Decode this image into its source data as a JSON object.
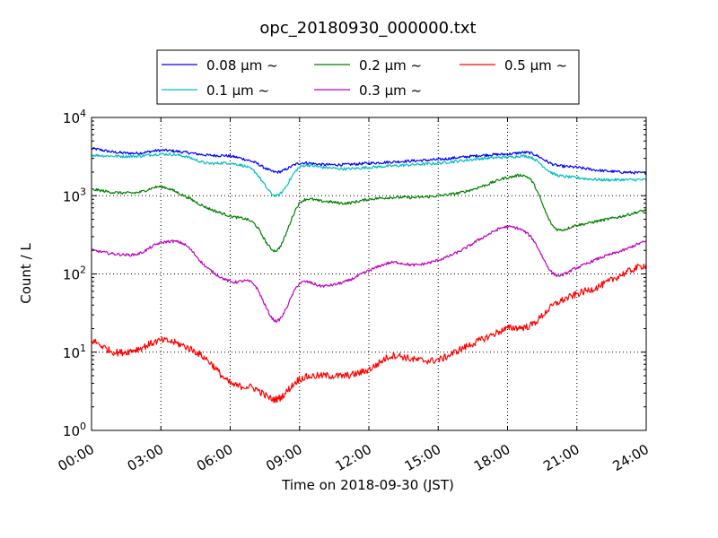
{
  "chart_data": {
    "type": "line",
    "title": "opc_20180930_000000.txt",
    "xlabel": "Time on 2018-09-30 (JST)",
    "ylabel": "Count / L",
    "xlim": [
      "00:00",
      "24:00"
    ],
    "ylim": [
      1,
      10000
    ],
    "yscale": "log",
    "grid": true,
    "legend_position": "top-center",
    "x_ticks": [
      "00:00",
      "03:00",
      "06:00",
      "09:00",
      "12:00",
      "15:00",
      "18:00",
      "21:00",
      "24:00"
    ],
    "y_ticks": [
      {
        "base": "10",
        "exp": "0",
        "value": 1
      },
      {
        "base": "10",
        "exp": "1",
        "value": 10
      },
      {
        "base": "10",
        "exp": "2",
        "value": 100
      },
      {
        "base": "10",
        "exp": "3",
        "value": 1000
      },
      {
        "base": "10",
        "exp": "4",
        "value": 10000
      }
    ],
    "x": [
      "00:00",
      "01:00",
      "02:00",
      "03:00",
      "04:00",
      "05:00",
      "06:00",
      "07:00",
      "08:00",
      "09:00",
      "10:00",
      "11:00",
      "12:00",
      "13:00",
      "14:00",
      "15:00",
      "16:00",
      "17:00",
      "18:00",
      "19:00",
      "20:00",
      "21:00",
      "22:00",
      "23:00",
      "24:00"
    ],
    "series": [
      {
        "name": "0.08 µm ~",
        "color": "#0000ff",
        "values": [
          4000,
          3600,
          3500,
          3800,
          3600,
          3300,
          3200,
          2700,
          2000,
          2600,
          2500,
          2500,
          2600,
          2700,
          2800,
          2900,
          3100,
          3300,
          3400,
          3500,
          2500,
          2300,
          2100,
          2000,
          1950
        ]
      },
      {
        "name": "0.1 µm ~",
        "color": "#00bfbf",
        "values": [
          3300,
          3200,
          3200,
          3400,
          3200,
          2600,
          2600,
          2100,
          1000,
          2300,
          2300,
          2200,
          2300,
          2400,
          2500,
          2600,
          2800,
          3000,
          3100,
          3100,
          1900,
          1700,
          1600,
          1600,
          1600
        ]
      },
      {
        "name": "0.2 µm ~",
        "color": "#008000",
        "values": [
          1200,
          1100,
          1100,
          1300,
          1000,
          700,
          550,
          450,
          200,
          800,
          850,
          800,
          900,
          950,
          950,
          1000,
          1100,
          1350,
          1700,
          1600,
          400,
          420,
          480,
          550,
          650
        ]
      },
      {
        "name": "0.3 µm ~",
        "color": "#bf00bf",
        "values": [
          200,
          180,
          180,
          250,
          240,
          120,
          80,
          75,
          25,
          75,
          70,
          80,
          110,
          140,
          130,
          150,
          200,
          300,
          400,
          300,
          100,
          120,
          160,
          200,
          260
        ]
      },
      {
        "name": "0.5 µm ~",
        "color": "#ff0000",
        "values": [
          14,
          10,
          11,
          14,
          12,
          8,
          4,
          3.5,
          2.5,
          4.5,
          5,
          5,
          6,
          9,
          8,
          8,
          11,
          15,
          20,
          22,
          40,
          55,
          70,
          100,
          130
        ]
      }
    ]
  }
}
